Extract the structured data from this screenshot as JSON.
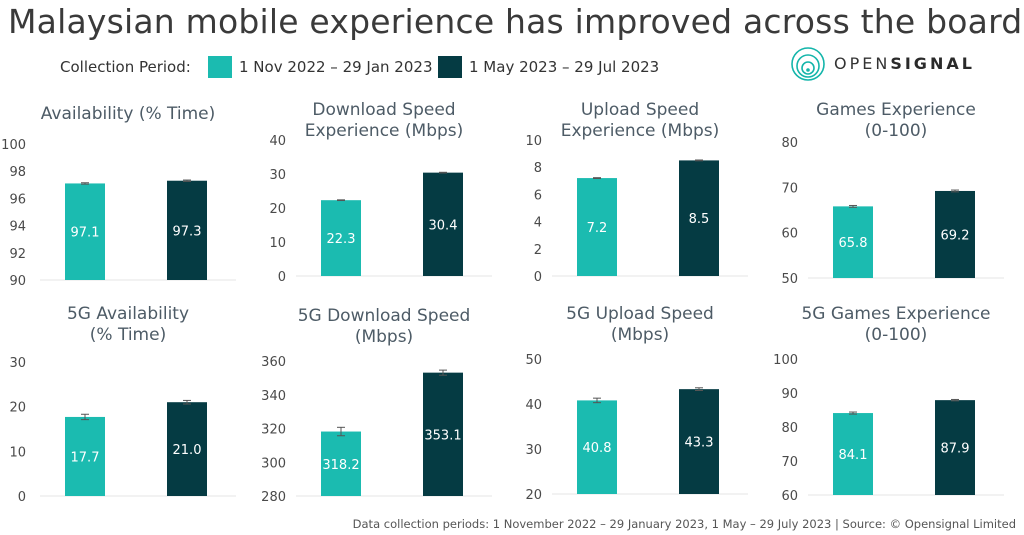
{
  "title": "Malaysian mobile experience has improved across the board",
  "legend": {
    "label": "Collection Period:",
    "items": [
      {
        "label": "1 Nov 2022 – 29 Jan 2023",
        "color": "#1bbbb0"
      },
      {
        "label": "1 May 2023 – 29 Jul 2023",
        "color": "#053b43"
      }
    ]
  },
  "logo": {
    "prefix": "OPEN",
    "suffix": "SIGNAL"
  },
  "footer": "Data collection periods: 1 November 2022 – 29 January 2023, 1 May – 29 July 2023 | Source: © Opensignal Limited",
  "chart_data": [
    {
      "type": "bar",
      "title": "Availability (% Time)",
      "yticks": [
        90,
        92,
        94,
        96,
        98,
        100
      ],
      "ylim": [
        90,
        100
      ],
      "values": [
        97.1,
        97.3
      ],
      "labels": [
        "97.1",
        "97.3"
      ],
      "errors": [
        0.05,
        0.05
      ]
    },
    {
      "type": "bar",
      "title": "Download Speed Experience (Mbps)",
      "yticks": [
        0,
        10,
        20,
        30,
        40
      ],
      "ylim": [
        0,
        40
      ],
      "values": [
        22.3,
        30.4
      ],
      "labels": [
        "22.3",
        "30.4"
      ],
      "errors": [
        0.1,
        0.1
      ]
    },
    {
      "type": "bar",
      "title": "Upload Speed Experience (Mbps)",
      "yticks": [
        0,
        2,
        4,
        6,
        8,
        10
      ],
      "ylim": [
        0,
        10
      ],
      "values": [
        7.2,
        8.5
      ],
      "labels": [
        "7.2",
        "8.5"
      ],
      "errors": [
        0.03,
        0.03
      ]
    },
    {
      "type": "bar",
      "title": "Games Experience (0-100)",
      "yticks": [
        50,
        60,
        70,
        80
      ],
      "ylim": [
        50,
        80
      ],
      "values": [
        65.8,
        69.2
      ],
      "labels": [
        "65.8",
        "69.2"
      ],
      "errors": [
        0.2,
        0.2
      ]
    },
    {
      "type": "bar",
      "title": "5G Availability (% Time)",
      "yticks": [
        0,
        10,
        20,
        30
      ],
      "ylim": [
        0,
        30
      ],
      "values": [
        17.7,
        21.0
      ],
      "labels": [
        "17.7",
        "21.0"
      ],
      "errors": [
        0.6,
        0.4
      ]
    },
    {
      "type": "bar",
      "title": "5G Download Speed (Mbps)",
      "yticks": [
        280,
        300,
        320,
        340,
        360
      ],
      "ylim": [
        280,
        360
      ],
      "values": [
        318.2,
        353.1
      ],
      "labels": [
        "318.2",
        "353.1"
      ],
      "errors": [
        2.5,
        1.5
      ]
    },
    {
      "type": "bar",
      "title": "5G Upload Speed (Mbps)",
      "yticks": [
        20,
        30,
        40,
        50
      ],
      "ylim": [
        20,
        50
      ],
      "values": [
        40.8,
        43.3
      ],
      "labels": [
        "40.8",
        "43.3"
      ],
      "errors": [
        0.5,
        0.3
      ]
    },
    {
      "type": "bar",
      "title": "5G Games Experience (0-100)",
      "yticks": [
        60,
        70,
        80,
        90,
        100
      ],
      "ylim": [
        60,
        100
      ],
      "values": [
        84.1,
        87.9
      ],
      "labels": [
        "84.1",
        "87.9"
      ],
      "errors": [
        0.3,
        0.2
      ]
    }
  ]
}
